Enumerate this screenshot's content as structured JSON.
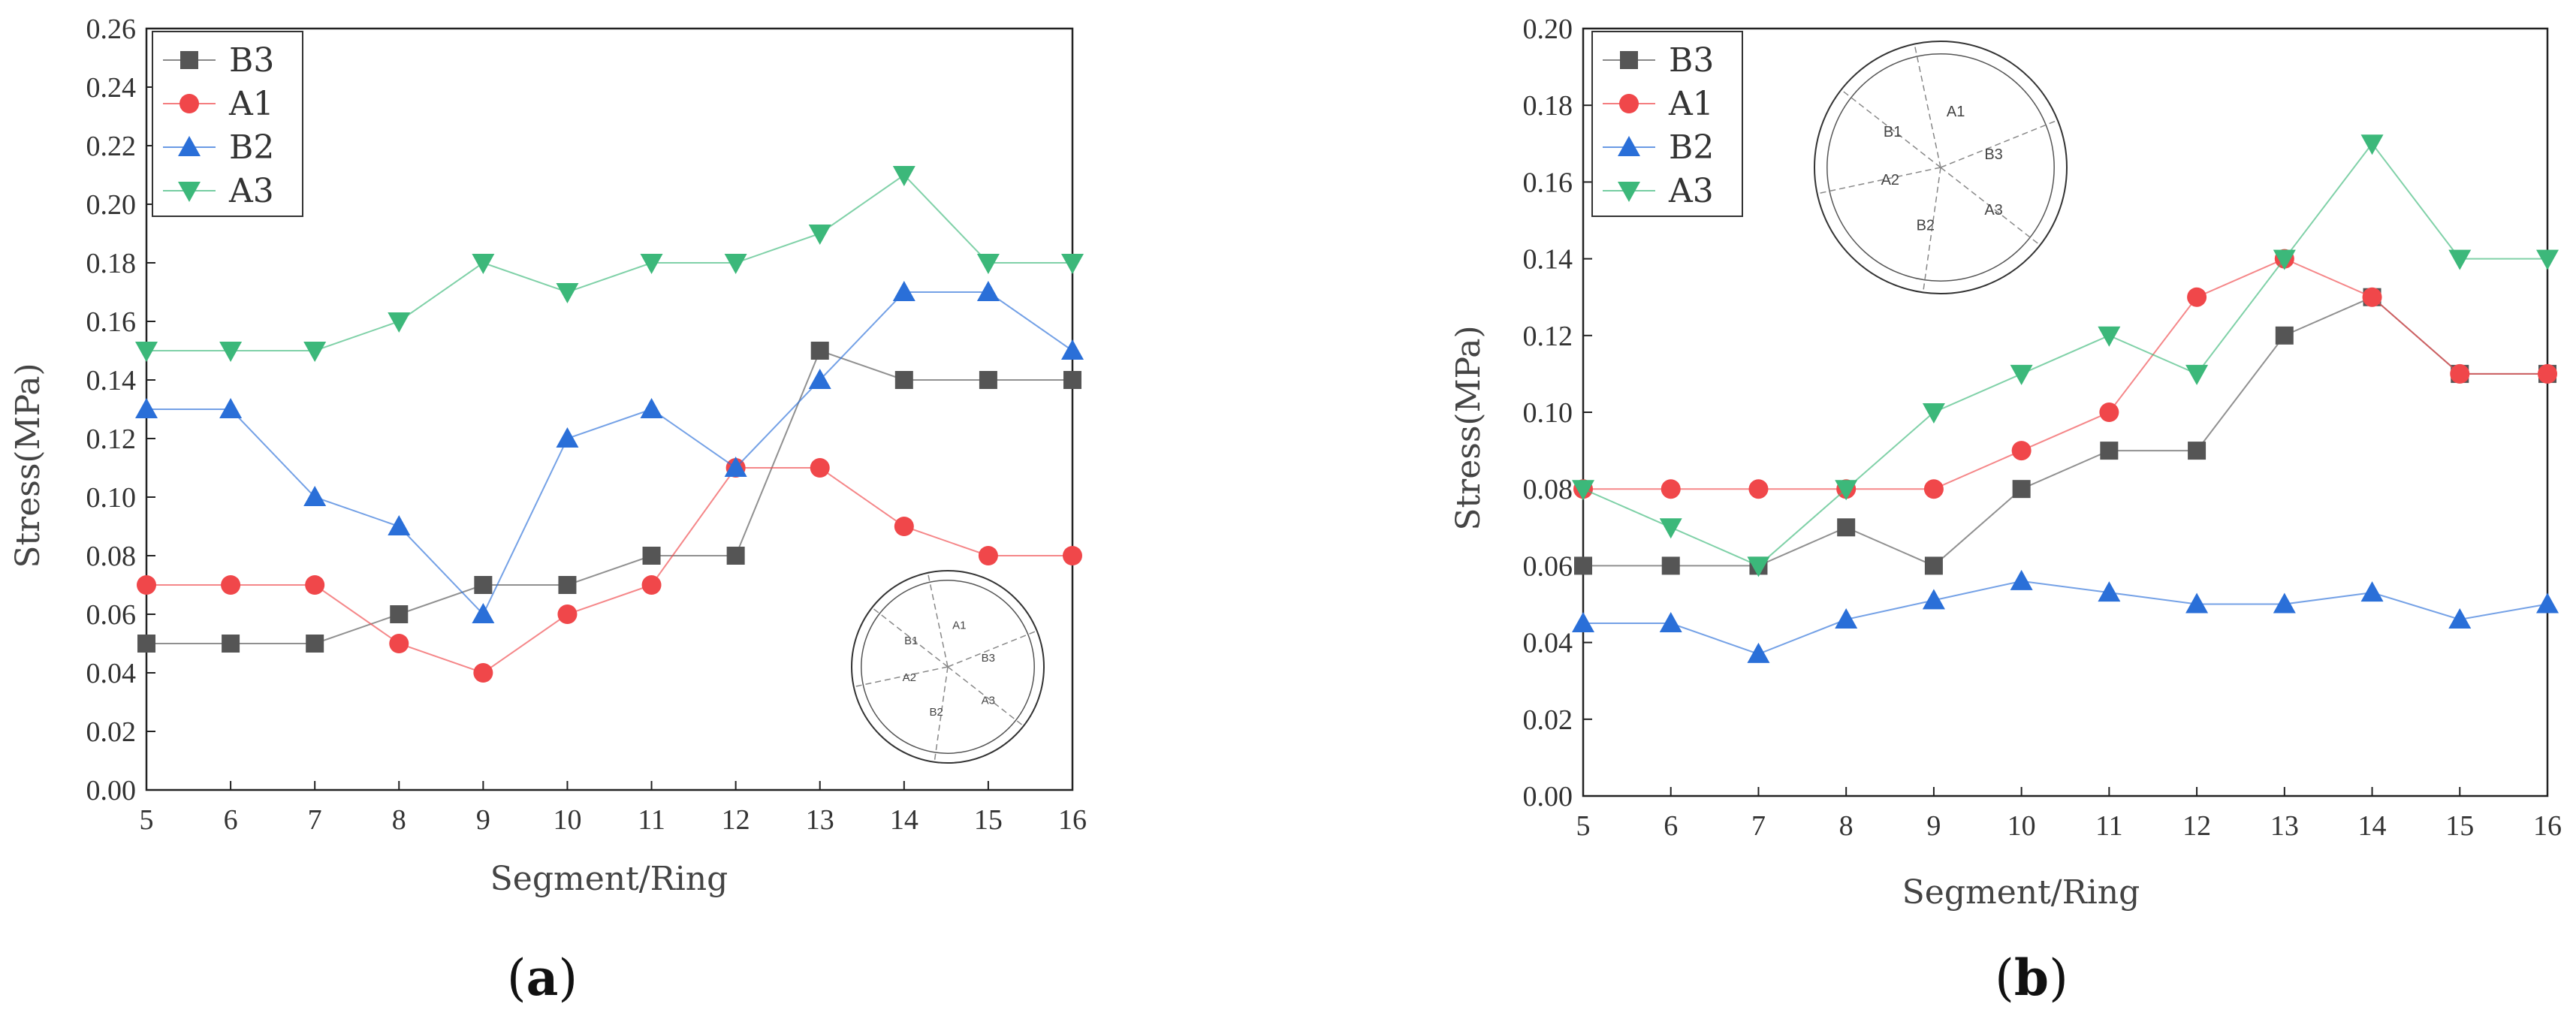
{
  "panels": [
    {
      "id": "a",
      "caption": "a"
    },
    {
      "id": "b",
      "caption": "b"
    }
  ],
  "inset_diagram": {
    "segments": [
      "A1",
      "B1",
      "B3",
      "A2",
      "B2",
      "A3"
    ]
  },
  "chart_data": [
    {
      "type": "line",
      "panel": "a",
      "xlabel": "Segment/Ring",
      "ylabel": "Stress(MPa)",
      "x": [
        5,
        6,
        7,
        8,
        9,
        10,
        11,
        12,
        13,
        14,
        15,
        16
      ],
      "xlim": [
        5,
        16
      ],
      "ylim": [
        0,
        0.26
      ],
      "yticks": [
        0.0,
        0.02,
        0.04,
        0.06,
        0.08,
        0.1,
        0.12,
        0.14,
        0.16,
        0.18,
        0.2,
        0.22,
        0.24,
        0.26
      ],
      "ytick_labels": [
        "0.00",
        "0.02",
        "0.04",
        "0.06",
        "0.08",
        "0.10",
        "0.12",
        "0.14",
        "0.16",
        "0.18",
        "0.20",
        "0.22",
        "0.24",
        "0.26"
      ],
      "xtick_labels": [
        "5",
        "6",
        "7",
        "8",
        "9",
        "10",
        "11",
        "12",
        "13",
        "14",
        "15",
        "16"
      ],
      "grid": false,
      "legend_position": "top-left",
      "series": [
        {
          "name": "B3",
          "color": "#555555",
          "marker": "square",
          "values": [
            0.05,
            0.05,
            0.05,
            0.06,
            0.07,
            0.07,
            0.08,
            0.08,
            0.15,
            0.14,
            0.14,
            0.14
          ]
        },
        {
          "name": "A1",
          "color": "#f0474a",
          "marker": "circle",
          "values": [
            0.07,
            0.07,
            0.07,
            0.05,
            0.04,
            0.06,
            0.07,
            0.11,
            0.11,
            0.09,
            0.08,
            0.08
          ]
        },
        {
          "name": "B2",
          "color": "#2a6fd8",
          "marker": "triangle-up",
          "values": [
            0.13,
            0.13,
            0.1,
            0.09,
            0.06,
            0.12,
            0.13,
            0.11,
            0.14,
            0.17,
            0.17,
            0.15
          ]
        },
        {
          "name": "A3",
          "color": "#3cb87a",
          "marker": "triangle-down",
          "values": [
            0.15,
            0.15,
            0.15,
            0.16,
            0.18,
            0.17,
            0.18,
            0.18,
            0.19,
            0.21,
            0.18,
            0.18
          ]
        }
      ]
    },
    {
      "type": "line",
      "panel": "b",
      "xlabel": "Segment/Ring",
      "ylabel": "Stress(MPa)",
      "x": [
        5,
        6,
        7,
        8,
        9,
        10,
        11,
        12,
        13,
        14,
        15,
        16
      ],
      "xlim": [
        5,
        16
      ],
      "ylim": [
        0,
        0.2
      ],
      "yticks": [
        0.0,
        0.02,
        0.04,
        0.06,
        0.08,
        0.1,
        0.12,
        0.14,
        0.16,
        0.18,
        0.2
      ],
      "ytick_labels": [
        "0.00",
        "0.02",
        "0.04",
        "0.06",
        "0.08",
        "0.10",
        "0.12",
        "0.14",
        "0.16",
        "0.18",
        "0.20"
      ],
      "xtick_labels": [
        "5",
        "6",
        "7",
        "8",
        "9",
        "10",
        "11",
        "12",
        "13",
        "14",
        "15",
        "16"
      ],
      "grid": false,
      "legend_position": "top-left",
      "series": [
        {
          "name": "B3",
          "color": "#555555",
          "marker": "square",
          "values": [
            0.06,
            0.06,
            0.06,
            0.07,
            0.06,
            0.08,
            0.09,
            0.09,
            0.12,
            0.13,
            0.11,
            0.11
          ]
        },
        {
          "name": "A1",
          "color": "#f0474a",
          "marker": "circle",
          "values": [
            0.08,
            0.08,
            0.08,
            0.08,
            0.08,
            0.09,
            0.1,
            0.13,
            0.14,
            0.13,
            0.11,
            0.11
          ]
        },
        {
          "name": "B2",
          "color": "#2a6fd8",
          "marker": "triangle-up",
          "values": [
            0.045,
            0.045,
            0.037,
            0.046,
            0.051,
            0.056,
            0.053,
            0.05,
            0.05,
            0.053,
            0.046,
            0.05
          ]
        },
        {
          "name": "A3",
          "color": "#3cb87a",
          "marker": "triangle-down",
          "values": [
            0.08,
            0.07,
            0.06,
            0.08,
            0.1,
            0.11,
            0.12,
            0.11,
            0.14,
            0.17,
            0.14,
            0.14
          ]
        }
      ]
    }
  ]
}
